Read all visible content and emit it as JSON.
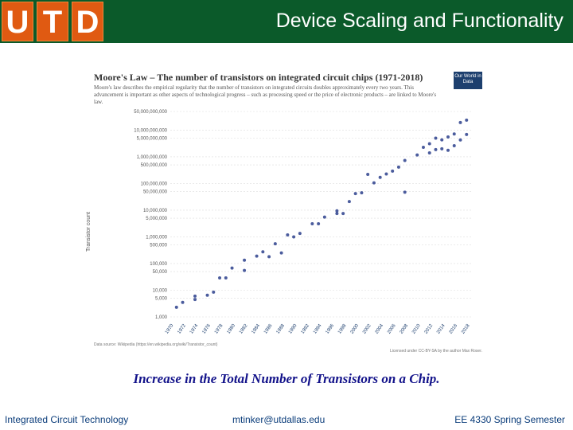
{
  "header": {
    "logo_letters": [
      "U",
      "T",
      "D"
    ],
    "title": "Device Scaling and Functionality",
    "bg_color": "#0b5a2a",
    "logo_color": "#e05a12"
  },
  "chart_data": {
    "type": "scatter",
    "title": "Moore's Law – The number of transistors on integrated circuit chips (1971-2018)",
    "description": "Moore's law describes the empirical regularity that the number of transistors on integrated circuits doubles approximately every two years. This advancement is important as other aspects of technological progress – such as processing speed or the price of electronic products – are linked to Moore's law.",
    "badge": "Our World in Data",
    "ylabel": "Transistor count",
    "yscale": "log",
    "ytick_labels": [
      "50,000,000,000",
      "10,000,000,000",
      "5,000,000,000",
      "1,000,000,000",
      "500,000,000",
      "100,000,000",
      "50,000,000",
      "10,000,000",
      "5,000,000",
      "1,000,000",
      "500,000",
      "100,000",
      "50,000",
      "10,000",
      "5,000",
      "1,000"
    ],
    "ytick_values": [
      50000000000,
      10000000000,
      5000000000,
      1000000000,
      500000000,
      100000000,
      50000000,
      10000000,
      5000000,
      1000000,
      500000,
      100000,
      50000,
      10000,
      5000,
      1000
    ],
    "xticks": [
      "1970",
      "1972",
      "1974",
      "1976",
      "1978",
      "1980",
      "1982",
      "1984",
      "1986",
      "1988",
      "1990",
      "1992",
      "1994",
      "1996",
      "1998",
      "2000",
      "2002",
      "2004",
      "2006",
      "2008",
      "2010",
      "2012",
      "2014",
      "2016",
      "2018"
    ],
    "xlim": [
      1970,
      2019
    ],
    "points": [
      [
        1971,
        2300
      ],
      [
        1972,
        3500
      ],
      [
        1974,
        4500
      ],
      [
        1974,
        6000
      ],
      [
        1976,
        6500
      ],
      [
        1978,
        29000
      ],
      [
        1979,
        29000
      ],
      [
        1982,
        55000
      ],
      [
        1982,
        134000
      ],
      [
        1985,
        275000
      ],
      [
        1986,
        180000
      ],
      [
        1987,
        553000
      ],
      [
        1989,
        1180000
      ],
      [
        1991,
        1350000
      ],
      [
        1993,
        3100000
      ],
      [
        1995,
        5500000
      ],
      [
        1997,
        7500000
      ],
      [
        1997,
        9500000
      ],
      [
        1999,
        21000000
      ],
      [
        2000,
        42000000
      ],
      [
        2001,
        45000000
      ],
      [
        2003,
        105900000
      ],
      [
        2004,
        169000000
      ],
      [
        2005,
        228000000
      ],
      [
        2006,
        291000000
      ],
      [
        2007,
        410000000
      ],
      [
        2008,
        731000000
      ],
      [
        2008,
        47000000
      ],
      [
        2010,
        1170000000
      ],
      [
        2011,
        2270000000
      ],
      [
        2012,
        1400000000
      ],
      [
        2012,
        3100000000
      ],
      [
        2013,
        1860000000
      ],
      [
        2014,
        4310000000
      ],
      [
        2015,
        5560000000
      ],
      [
        2016,
        7200000000
      ],
      [
        2017,
        19200000000
      ],
      [
        2018,
        23600000000
      ],
      [
        2017,
        4300000000
      ],
      [
        2016,
        2600000000
      ],
      [
        2015,
        1750000000
      ],
      [
        2014,
        2000000000
      ],
      [
        2013,
        5000000000
      ],
      [
        2018,
        6900000000
      ],
      [
        1977,
        8500
      ],
      [
        1980,
        68000
      ],
      [
        1984,
        190000
      ],
      [
        1988,
        250000
      ],
      [
        1990,
        1000000
      ],
      [
        1994,
        3100000
      ],
      [
        1998,
        7500000
      ],
      [
        2002,
        220000000
      ]
    ],
    "source": "Data source: Wikipedia (https://en.wikipedia.org/wiki/Transistor_count)",
    "license": "Licensed under CC-BY-SA by the author Max Roser."
  },
  "caption": "Increase in the Total Number of Transistors on a Chip.",
  "footer": {
    "left": "Integrated Circuit Technology",
    "middle": "mtinker@utdallas.edu",
    "right": "EE 4330 Spring Semester"
  }
}
